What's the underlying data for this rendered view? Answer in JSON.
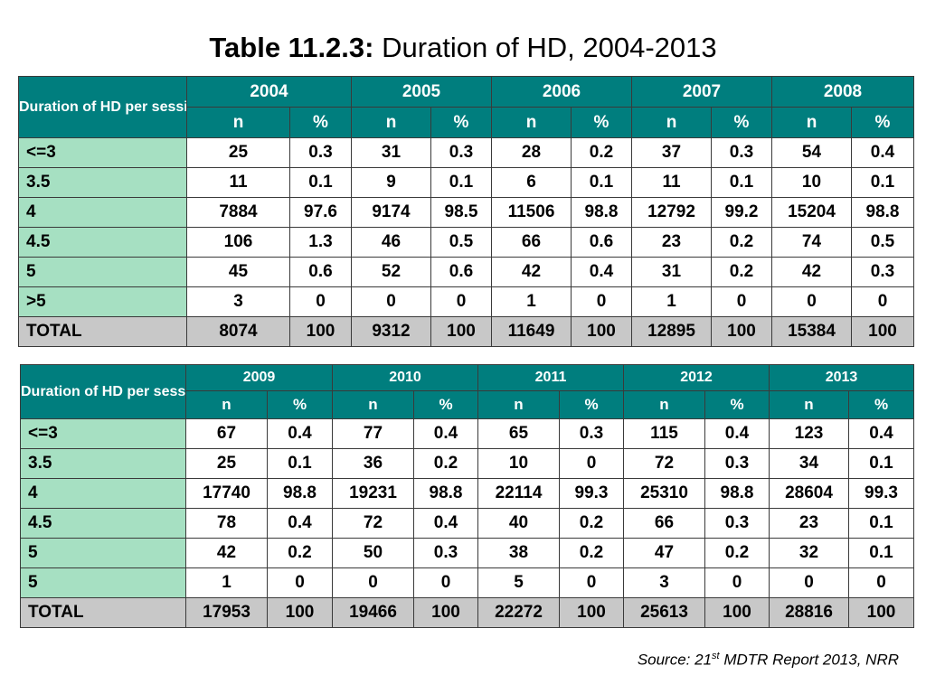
{
  "title": {
    "bold": "Table 11.2.3:",
    "rest": " Duration of HD, 2004-2013"
  },
  "table1": {
    "corner": "Duration of HD per session (hrs)",
    "years": [
      "2004",
      "2005",
      "2006",
      "2007",
      "2008"
    ],
    "sub": [
      "n",
      "%"
    ],
    "rows": [
      {
        "label": "<=3",
        "cells": [
          "25",
          "0.3",
          "31",
          "0.3",
          "28",
          "0.2",
          "37",
          "0.3",
          "54",
          "0.4"
        ]
      },
      {
        "label": "3.5",
        "cells": [
          "11",
          "0.1",
          "9",
          "0.1",
          "6",
          "0.1",
          "11",
          "0.1",
          "10",
          "0.1"
        ]
      },
      {
        "label": "4",
        "cells": [
          "7884",
          "97.6",
          "9174",
          "98.5",
          "11506",
          "98.8",
          "12792",
          "99.2",
          "15204",
          "98.8"
        ]
      },
      {
        "label": "4.5",
        "cells": [
          "106",
          "1.3",
          "46",
          "0.5",
          "66",
          "0.6",
          "23",
          "0.2",
          "74",
          "0.5"
        ]
      },
      {
        "label": "5",
        "cells": [
          "45",
          "0.6",
          "52",
          "0.6",
          "42",
          "0.4",
          "31",
          "0.2",
          "42",
          "0.3"
        ]
      },
      {
        "label": ">5",
        "cells": [
          "3",
          "0",
          "0",
          "0",
          "1",
          "0",
          "1",
          "0",
          "0",
          "0"
        ]
      },
      {
        "label": "TOTAL",
        "cells": [
          "8074",
          "100",
          "9312",
          "100",
          "11649",
          "100",
          "12895",
          "100",
          "15384",
          "100"
        ]
      }
    ]
  },
  "table2": {
    "corner": "Duration of HD per session (Hrs)",
    "years": [
      "2009",
      "2010",
      "2011",
      "2012",
      "2013"
    ],
    "sub": [
      "n",
      "%"
    ],
    "rows": [
      {
        "label": "<=3",
        "cells": [
          "67",
          "0.4",
          "77",
          "0.4",
          "65",
          "0.3",
          "115",
          "0.4",
          "123",
          "0.4"
        ]
      },
      {
        "label": "3.5",
        "cells": [
          "25",
          "0.1",
          "36",
          "0.2",
          "10",
          "0",
          "72",
          "0.3",
          "34",
          "0.1"
        ]
      },
      {
        "label": "4",
        "cells": [
          "17740",
          "98.8",
          "19231",
          "98.8",
          "22114",
          "99.3",
          "25310",
          "98.8",
          "28604",
          "99.3"
        ]
      },
      {
        "label": "4.5",
        "cells": [
          "78",
          "0.4",
          "72",
          "0.4",
          "40",
          "0.2",
          "66",
          "0.3",
          "23",
          "0.1"
        ]
      },
      {
        "label": "5",
        "cells": [
          "42",
          "0.2",
          "50",
          "0.3",
          "38",
          "0.2",
          "47",
          "0.2",
          "32",
          "0.1"
        ]
      },
      {
        "label": "5",
        "cells": [
          "1",
          "0",
          "0",
          "0",
          "5",
          "0",
          "3",
          "0",
          "0",
          "0"
        ]
      },
      {
        "label": "TOTAL",
        "cells": [
          "17953",
          "100",
          "19466",
          "100",
          "22272",
          "100",
          "25613",
          "100",
          "28816",
          "100"
        ]
      }
    ]
  },
  "source": {
    "prefix": "Source: 21",
    "sup": "st",
    "suffix": " MDTR Report 2013, NRR"
  },
  "colors": {
    "header_teal": "#007e7e",
    "row_label_green": "#a6e0c2",
    "total_grey": "#c8c8c8"
  }
}
